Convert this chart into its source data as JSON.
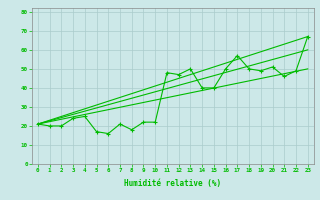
{
  "xlabel": "Humidité relative (%)",
  "background_color": "#cce8e8",
  "grid_color": "#aacccc",
  "line_color": "#00bb00",
  "xlim_min": -0.5,
  "xlim_max": 23.5,
  "ylim_min": 0,
  "ylim_max": 82,
  "xtick_labels": [
    "0",
    "1",
    "2",
    "3",
    "4",
    "5",
    "6",
    "7",
    "8",
    "9",
    "10",
    "11",
    "12",
    "13",
    "14",
    "15",
    "16",
    "17",
    "18",
    "19",
    "20",
    "21",
    "22",
    "23"
  ],
  "ytick_vals": [
    0,
    10,
    20,
    30,
    40,
    50,
    60,
    70,
    80
  ],
  "series1_x": [
    0,
    1,
    2,
    3,
    4,
    5,
    6,
    7,
    8,
    9,
    10,
    11,
    12,
    13,
    14,
    15,
    16,
    17,
    18,
    19,
    20,
    21,
    22,
    23
  ],
  "series1_y": [
    21,
    20,
    20,
    24,
    25,
    17,
    16,
    21,
    18,
    22,
    22,
    48,
    47,
    50,
    40,
    40,
    50,
    57,
    50,
    49,
    51,
    46,
    49,
    67
  ],
  "line2_x": [
    0,
    23
  ],
  "line2_y": [
    21,
    67
  ],
  "line3_x": [
    0,
    23
  ],
  "line3_y": [
    21,
    60
  ],
  "line4_x": [
    0,
    23
  ],
  "line4_y": [
    21,
    50
  ],
  "label_fontsize": 5.5,
  "tick_fontsize": 4.2,
  "xlabel_fontsize": 5.5
}
